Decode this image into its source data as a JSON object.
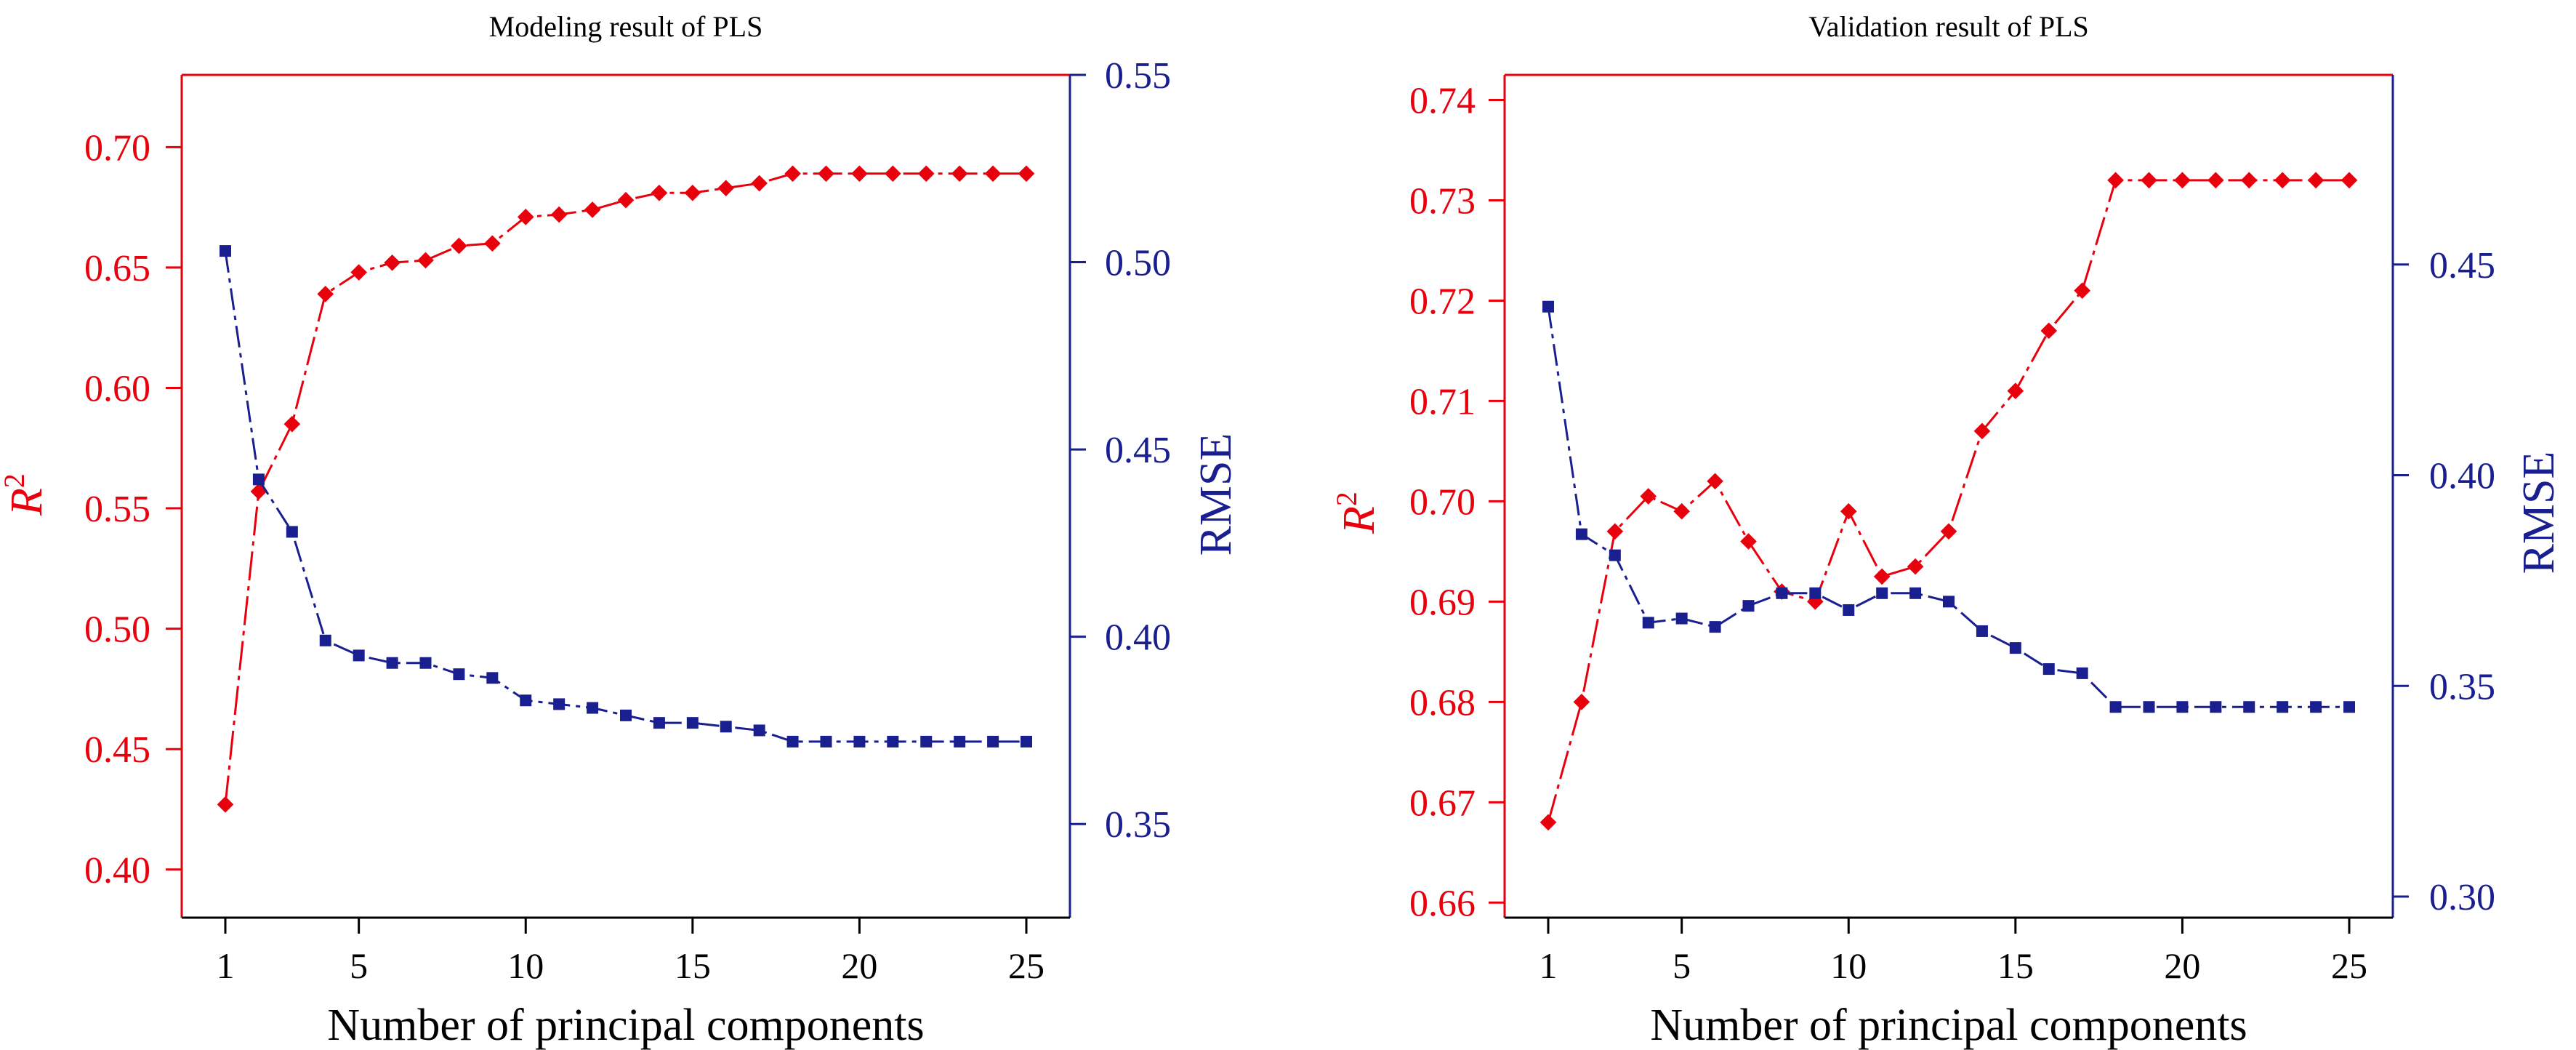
{
  "colors": {
    "r2": "#e8000d",
    "rmse": "#1a1f8f",
    "axis": "#000000"
  },
  "chart_data": [
    {
      "type": "line",
      "title": "Modeling result of PLS",
      "xlabel": "Number of principal components",
      "ylabel_left_base": "R",
      "ylabel_left_sup": "2",
      "ylabel_right": "RMSE",
      "xlim": [
        1,
        25
      ],
      "xticks": [
        1,
        5,
        10,
        15,
        20,
        25
      ],
      "ylim_left": [
        0.38,
        0.73
      ],
      "yticks_left": [
        0.4,
        0.45,
        0.5,
        0.55,
        0.6,
        0.65,
        0.7
      ],
      "ylim_right": [
        0.325,
        0.55
      ],
      "yticks_right": [
        0.35,
        0.4,
        0.45,
        0.5,
        0.55
      ],
      "series": [
        {
          "name": "R2",
          "axis": "left",
          "x": [
            1,
            2,
            3,
            4,
            5,
            6,
            7,
            8,
            9,
            10,
            11,
            12,
            13,
            14,
            15,
            16,
            17,
            18,
            19,
            20,
            21,
            22,
            23,
            24,
            25
          ],
          "values": [
            0.427,
            0.557,
            0.585,
            0.639,
            0.648,
            0.652,
            0.653,
            0.659,
            0.66,
            0.671,
            0.672,
            0.674,
            0.678,
            0.681,
            0.681,
            0.683,
            0.685,
            0.689,
            0.689,
            0.689,
            0.689,
            0.689,
            0.689,
            0.689,
            0.689
          ]
        },
        {
          "name": "RMSE",
          "axis": "right",
          "x": [
            1,
            2,
            3,
            4,
            5,
            6,
            7,
            8,
            9,
            10,
            11,
            12,
            13,
            14,
            15,
            16,
            17,
            18,
            19,
            20,
            21,
            22,
            23,
            24,
            25
          ],
          "values": [
            0.503,
            0.442,
            0.428,
            0.399,
            0.395,
            0.393,
            0.393,
            0.39,
            0.389,
            0.383,
            0.382,
            0.381,
            0.379,
            0.377,
            0.377,
            0.376,
            0.375,
            0.372,
            0.372,
            0.372,
            0.372,
            0.372,
            0.372,
            0.372,
            0.372
          ]
        }
      ]
    },
    {
      "type": "line",
      "title": "Validation result of PLS",
      "xlabel": "Number of principal components",
      "ylabel_left_base": "R",
      "ylabel_left_sup": "2",
      "ylabel_right": "RMSE",
      "xlim": [
        1,
        25
      ],
      "xticks": [
        1,
        5,
        10,
        15,
        20,
        25
      ],
      "ylim_left": [
        0.6585,
        0.7425
      ],
      "yticks_left": [
        0.66,
        0.67,
        0.68,
        0.69,
        0.7,
        0.71,
        0.72,
        0.73,
        0.74
      ],
      "ylim_right": [
        0.295,
        0.495
      ],
      "yticks_right": [
        0.3,
        0.35,
        0.4,
        0.45
      ],
      "series": [
        {
          "name": "R2",
          "axis": "left",
          "x": [
            1,
            2,
            3,
            4,
            5,
            6,
            7,
            8,
            9,
            10,
            11,
            12,
            13,
            14,
            15,
            16,
            17,
            18,
            19,
            20,
            21,
            22,
            23,
            24,
            25
          ],
          "values": [
            0.668,
            0.68,
            0.697,
            0.7005,
            0.699,
            0.702,
            0.696,
            0.691,
            0.69,
            0.699,
            0.6925,
            0.6935,
            0.697,
            0.707,
            0.711,
            0.717,
            0.721,
            0.732,
            0.732,
            0.732,
            0.732,
            0.732,
            0.732,
            0.732,
            0.732
          ]
        },
        {
          "name": "RMSE",
          "axis": "right",
          "x": [
            1,
            2,
            3,
            4,
            5,
            6,
            7,
            8,
            9,
            10,
            11,
            12,
            13,
            14,
            15,
            16,
            17,
            18,
            19,
            20,
            21,
            22,
            23,
            24,
            25
          ],
          "values": [
            0.44,
            0.386,
            0.381,
            0.365,
            0.366,
            0.364,
            0.369,
            0.372,
            0.372,
            0.368,
            0.372,
            0.372,
            0.37,
            0.363,
            0.359,
            0.354,
            0.353,
            0.345,
            0.345,
            0.345,
            0.345,
            0.345,
            0.345,
            0.345,
            0.345
          ]
        }
      ]
    }
  ]
}
